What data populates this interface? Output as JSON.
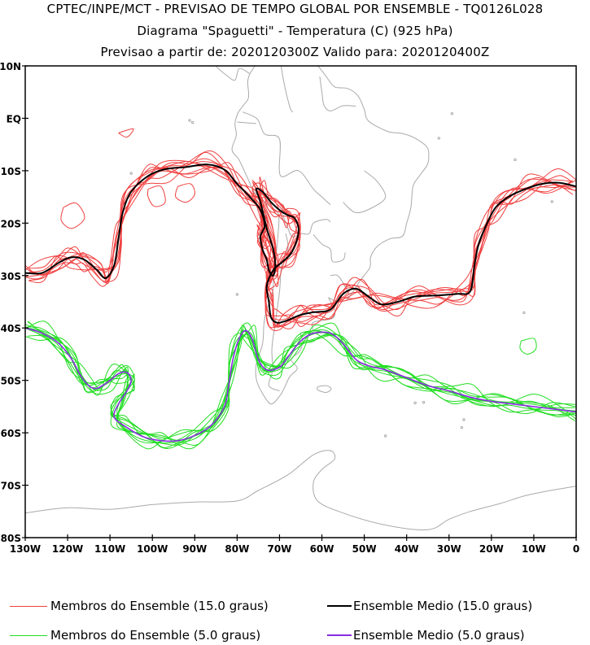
{
  "titles": {
    "line1": "CPTEC/INPE/MCT - PREVISAO DE TEMPO GLOBAL POR ENSEMBLE - TQ0126L028",
    "line2": "Diagrama \"Spaguetti\" - Temperatura (C) (925 hPa)",
    "line3": "Previsao a partir de: 2020120300Z  Valido para: 2020120400Z"
  },
  "map": {
    "lat_range": [
      -80,
      10
    ],
    "lon_range": [
      -130,
      0
    ],
    "lat_ticks": [
      {
        "value": 10,
        "label": "10N"
      },
      {
        "value": 0,
        "label": "EQ"
      },
      {
        "value": -10,
        "label": "10S"
      },
      {
        "value": -20,
        "label": "20S"
      },
      {
        "value": -30,
        "label": "30S"
      },
      {
        "value": -40,
        "label": "40S"
      },
      {
        "value": -50,
        "label": "50S"
      },
      {
        "value": -60,
        "label": "60S"
      },
      {
        "value": -70,
        "label": "70S"
      },
      {
        "value": -80,
        "label": "80S"
      }
    ],
    "lon_ticks": [
      {
        "value": -130,
        "label": "130W"
      },
      {
        "value": -120,
        "label": "120W"
      },
      {
        "value": -110,
        "label": "110W"
      },
      {
        "value": -100,
        "label": "100W"
      },
      {
        "value": -90,
        "label": "90W"
      },
      {
        "value": -80,
        "label": "80W"
      },
      {
        "value": -70,
        "label": "70W"
      },
      {
        "value": -60,
        "label": "60W"
      },
      {
        "value": -50,
        "label": "50W"
      },
      {
        "value": -40,
        "label": "40W"
      },
      {
        "value": -30,
        "label": "30W"
      },
      {
        "value": -20,
        "label": "20W"
      },
      {
        "value": -10,
        "label": "10W"
      },
      {
        "value": 0,
        "label": "0"
      }
    ],
    "colors": {
      "coastline": "#aaaaaa",
      "members_15": "#f04040",
      "mean_15": "#000000",
      "members_5": "#22dd22",
      "mean_5": "#8a2be2"
    }
  },
  "chart_data": {
    "type": "map",
    "contours": [
      {
        "name": "Ensemble Medio (15.0 graus)",
        "level": 15.0,
        "lonlat": [
          [
            -130,
            -29.5
          ],
          [
            -126,
            -29.5
          ],
          [
            -122,
            -27.5
          ],
          [
            -119,
            -26.5
          ],
          [
            -116,
            -27
          ],
          [
            -113,
            -29
          ],
          [
            -111,
            -30.5
          ],
          [
            -109,
            -28
          ],
          [
            -108,
            -23
          ],
          [
            -107,
            -18
          ],
          [
            -105,
            -14
          ],
          [
            -101,
            -11
          ],
          [
            -97,
            -9.7
          ],
          [
            -92,
            -9.3
          ],
          [
            -87,
            -8.8
          ],
          [
            -83,
            -9.8
          ],
          [
            -80,
            -12.5
          ],
          [
            -77,
            -15
          ],
          [
            -74.5,
            -17.5
          ],
          [
            -73.5,
            -20.5
          ],
          [
            -74.5,
            -22.5
          ],
          [
            -74,
            -25
          ],
          [
            -73,
            -27
          ],
          [
            -72.5,
            -29
          ],
          [
            -71.5,
            -30
          ],
          [
            -71,
            -28
          ],
          [
            -71.5,
            -25
          ],
          [
            -73,
            -21
          ],
          [
            -74.5,
            -16
          ],
          [
            -75.5,
            -13.5
          ],
          [
            -74,
            -14
          ],
          [
            -72,
            -16
          ],
          [
            -70,
            -17.5
          ],
          [
            -68,
            -18.5
          ],
          [
            -66.5,
            -19
          ],
          [
            -65.5,
            -21
          ],
          [
            -66,
            -23.5
          ],
          [
            -67.5,
            -26
          ],
          [
            -69.5,
            -27.5
          ],
          [
            -71.5,
            -29
          ],
          [
            -73,
            -32
          ],
          [
            -72.5,
            -35
          ],
          [
            -72,
            -38
          ],
          [
            -70.5,
            -39
          ],
          [
            -68,
            -38.5
          ],
          [
            -65,
            -37.5
          ],
          [
            -62,
            -37
          ],
          [
            -58,
            -36.5
          ],
          [
            -55,
            -33.5
          ],
          [
            -52,
            -32.5
          ],
          [
            -49,
            -34
          ],
          [
            -46,
            -35.5
          ],
          [
            -42,
            -35
          ],
          [
            -38,
            -34
          ],
          [
            -33,
            -33.8
          ],
          [
            -28,
            -33.5
          ],
          [
            -25,
            -33
          ],
          [
            -24,
            -28
          ],
          [
            -23,
            -24
          ],
          [
            -21,
            -20
          ],
          [
            -19,
            -17
          ],
          [
            -16,
            -15
          ],
          [
            -12,
            -13.5
          ],
          [
            -8,
            -12.5
          ],
          [
            -4,
            -12.3
          ],
          [
            0,
            -13
          ]
        ]
      },
      {
        "name": "Ensemble Medio (5.0 graus)",
        "level": 5.0,
        "lonlat": [
          [
            -130,
            -40
          ],
          [
            -126,
            -41
          ],
          [
            -122,
            -43
          ],
          [
            -119,
            -46
          ],
          [
            -117,
            -49
          ],
          [
            -115,
            -51
          ],
          [
            -113,
            -51.5
          ],
          [
            -110,
            -50
          ],
          [
            -108,
            -48.7
          ],
          [
            -106,
            -48.5
          ],
          [
            -105,
            -50
          ],
          [
            -106,
            -52
          ],
          [
            -108,
            -54.5
          ],
          [
            -109,
            -57
          ],
          [
            -106,
            -59
          ],
          [
            -102,
            -60.8
          ],
          [
            -98,
            -61.5
          ],
          [
            -94,
            -61.5
          ],
          [
            -90,
            -60.5
          ],
          [
            -86,
            -58.5
          ],
          [
            -83,
            -55
          ],
          [
            -82,
            -51
          ],
          [
            -81,
            -46
          ],
          [
            -79.5,
            -42
          ],
          [
            -78,
            -40.5
          ],
          [
            -76.5,
            -42
          ],
          [
            -75,
            -46
          ],
          [
            -73,
            -48
          ],
          [
            -70,
            -47.5
          ],
          [
            -68,
            -45.5
          ],
          [
            -65,
            -42.5
          ],
          [
            -62,
            -41
          ],
          [
            -58,
            -41
          ],
          [
            -55,
            -43
          ],
          [
            -52,
            -46
          ],
          [
            -49,
            -47.2
          ],
          [
            -45,
            -48
          ],
          [
            -40,
            -49.5
          ],
          [
            -35,
            -51
          ],
          [
            -30,
            -52
          ],
          [
            -25,
            -53.2
          ],
          [
            -20,
            -54
          ],
          [
            -15,
            -54.5
          ],
          [
            -10,
            -55
          ],
          [
            -5,
            -55.5
          ],
          [
            0,
            -56
          ]
        ]
      },
      {
        "name": "Membros do Ensemble (15.0 graus)",
        "level": 15.0,
        "members": 10
      },
      {
        "name": "Membros do Ensemble (5.0 graus)",
        "level": 5.0,
        "members": 10
      }
    ]
  },
  "legend": {
    "members_15": "Membros do Ensemble (15.0 graus)",
    "mean_15": "Ensemble Medio (15.0 graus)",
    "members_5": "Membros do Ensemble (5.0 graus)",
    "mean_5": "Ensemble Medio (5.0 graus)"
  }
}
